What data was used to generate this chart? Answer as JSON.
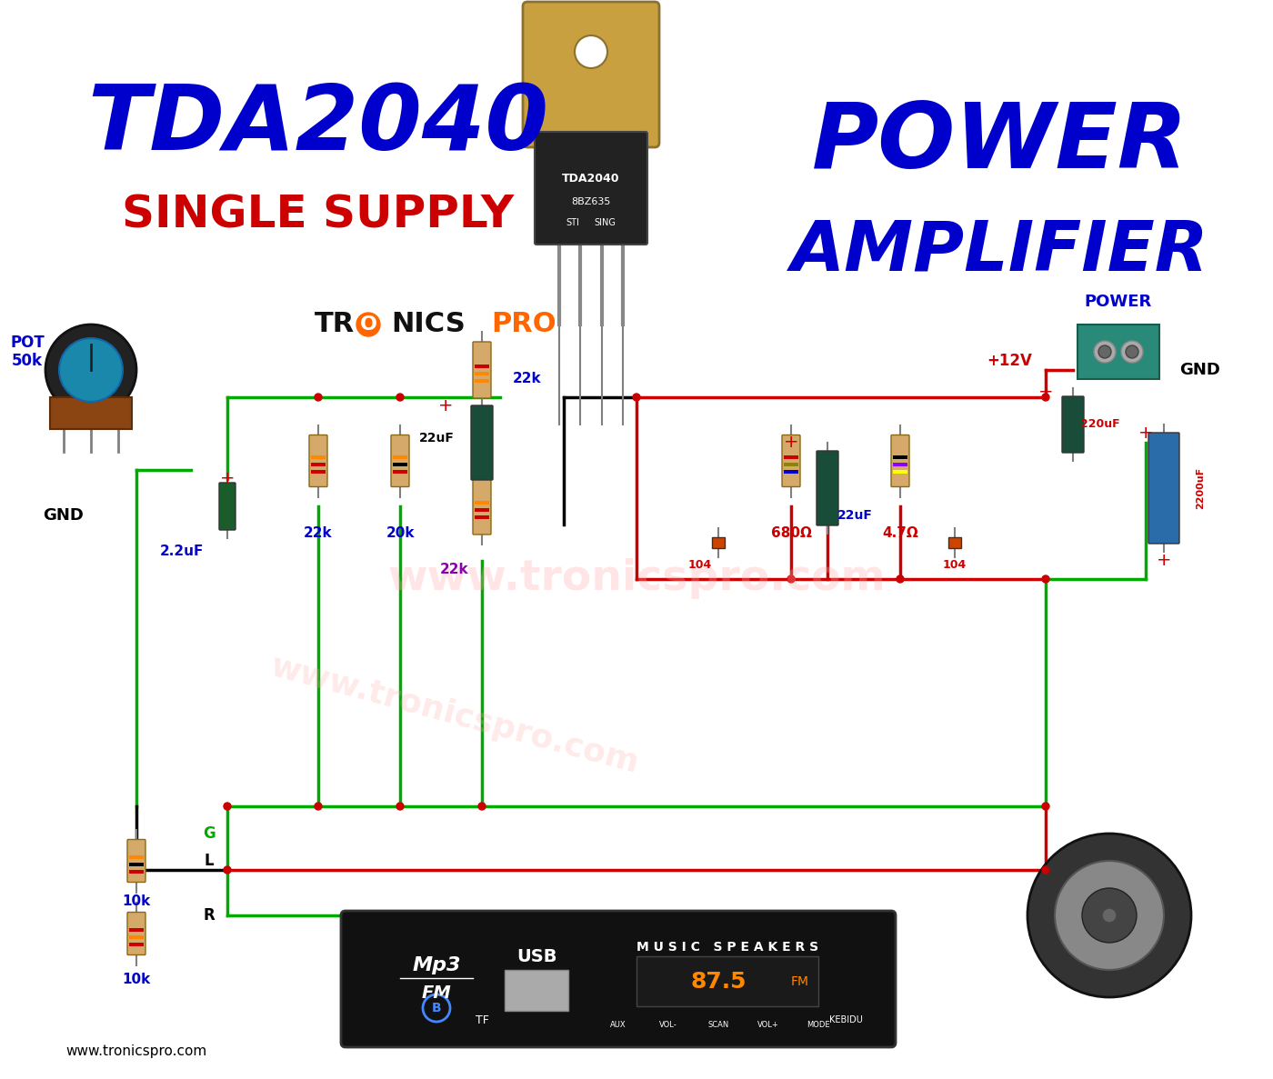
{
  "bg_color": "#ffffff",
  "title1": "TDA2040",
  "title1_color": "#0000cc",
  "title2": "SINGLE SUPPLY",
  "title2_color": "#cc0000",
  "title3_color": "#0000cc",
  "watermark": "www.tronicspro.com",
  "website": "www.tronicspro.com",
  "labels": {
    "pot": "POT\n50k",
    "gnd_left": "GND",
    "plus12v": "+12V",
    "gnd_right": "GND",
    "power": "POWER",
    "r1": "22k",
    "r2": "20k",
    "r3": "22k",
    "r4": "22k",
    "r5": "680Ω",
    "r6": "4.7Ω",
    "r7": "10k",
    "r8": "10k",
    "c1": "2.2uF",
    "c2": "22uF",
    "c4": "22uF",
    "c7": "220uF",
    "c8": "2200uF",
    "g_label": "G",
    "l_label": "L",
    "r_label": "R"
  },
  "wire_green": "#00aa00",
  "wire_red": "#cc0000",
  "wire_black": "#000000",
  "node_color": "#cc0000",
  "label_blue": "#0000cc",
  "label_red": "#cc0000",
  "label_purple": "#8800aa"
}
